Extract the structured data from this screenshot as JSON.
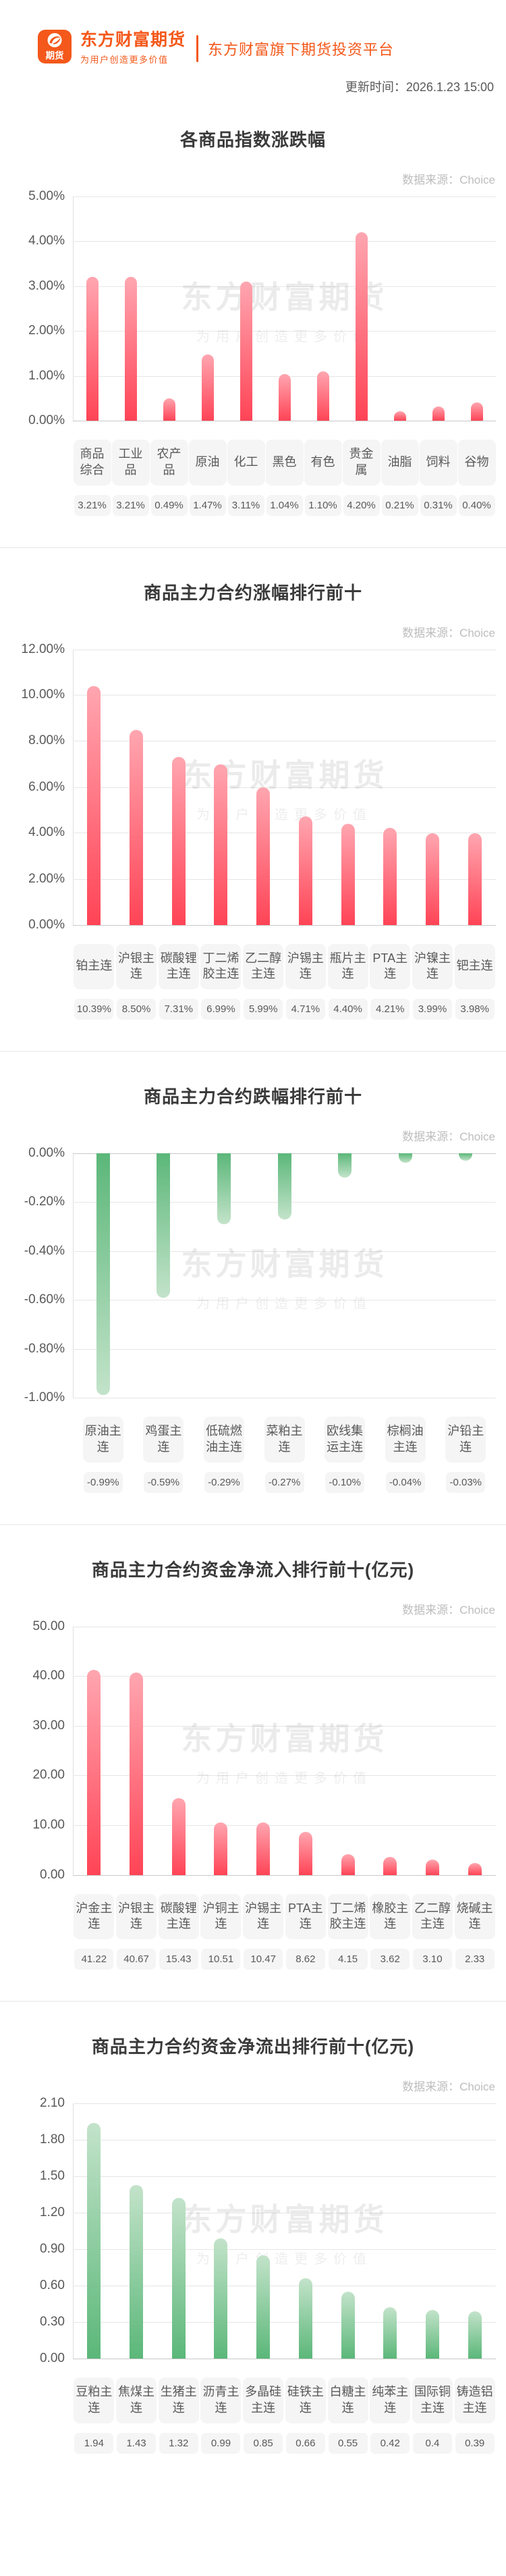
{
  "header": {
    "logo_badge_text": "期货",
    "brand_name": "东方财富期货",
    "brand_tagline": "为用户创造更多价值",
    "platform_label": "东方财富旗下期货投资平台",
    "update_time": "更新时间：2026.1.23 15:00",
    "brand_color": "#F4581A"
  },
  "watermark": {
    "line1": "东方财富期货",
    "line2": "为用户创造更多价值"
  },
  "colors": {
    "rise_gradient_top": "#FFA6B0",
    "rise_gradient_bottom": "#FF4456",
    "fall_gradient_dark": "#5BB779",
    "fall_gradient_light": "#C3E3CA",
    "gridline": "#E6E6E6",
    "tick_text": "#595959",
    "badge_background": "#F5F5F5",
    "source_text": "#BDBDBD"
  },
  "chart_data": [
    {
      "type": "bar",
      "title": "各商品指数涨跌幅",
      "source": "数据来源：Choice",
      "direction": "up",
      "palette": "red",
      "axis_max": 5,
      "ylim": [
        0,
        5
      ],
      "grid": true,
      "legend": "none",
      "ticks": [
        "5.00%",
        "4.00%",
        "3.00%",
        "2.00%",
        "1.00%",
        "0.00%"
      ],
      "categories": [
        "商品综合",
        "工业品",
        "农产品",
        "原油",
        "化工",
        "黑色",
        "有色",
        "贵金属",
        "油脂",
        "饲料",
        "谷物"
      ],
      "values": [
        3.21,
        3.21,
        0.49,
        1.47,
        3.11,
        1.04,
        1.1,
        4.2,
        0.21,
        0.31,
        0.4
      ],
      "value_labels": [
        "3.21%",
        "3.21%",
        "0.49%",
        "1.47%",
        "3.11%",
        "1.04%",
        "1.10%",
        "4.20%",
        "0.21%",
        "0.31%",
        "0.40%"
      ]
    },
    {
      "type": "bar",
      "title": "商品主力合约涨幅排行前十",
      "source": "数据来源：Choice",
      "direction": "up",
      "palette": "red",
      "axis_max": 12,
      "ylim": [
        0,
        12
      ],
      "grid": true,
      "legend": "none",
      "ticks": [
        "12.00%",
        "10.00%",
        "8.00%",
        "6.00%",
        "4.00%",
        "2.00%",
        "0.00%"
      ],
      "categories": [
        "铂主连",
        "沪银主连",
        "碳酸锂主连",
        "丁二烯胶主连",
        "乙二醇主连",
        "沪锡主连",
        "瓶片主连",
        "PTA主连",
        "沪镍主连",
        "钯主连"
      ],
      "values": [
        10.39,
        8.5,
        7.31,
        6.99,
        5.99,
        4.71,
        4.4,
        4.21,
        3.99,
        3.98
      ],
      "value_labels": [
        "10.39%",
        "8.50%",
        "7.31%",
        "6.99%",
        "5.99%",
        "4.71%",
        "4.40%",
        "4.21%",
        "3.99%",
        "3.98%"
      ]
    },
    {
      "type": "bar",
      "title": "商品主力合约跌幅排行前十",
      "source": "数据来源：Choice",
      "direction": "down",
      "palette": "green",
      "axis_max": 1,
      "ylim": [
        -1,
        0
      ],
      "grid": true,
      "legend": "none",
      "ticks": [
        "0.00%",
        "-0.20%",
        "-0.40%",
        "-0.60%",
        "-0.80%",
        "-1.00%"
      ],
      "categories": [
        "原油主连",
        "鸡蛋主连",
        "低硫燃油主连",
        "菜粕主连",
        "欧线集运主连",
        "棕榈油主连",
        "沪铅主连"
      ],
      "values": [
        -0.99,
        -0.59,
        -0.29,
        -0.27,
        -0.1,
        -0.04,
        -0.03
      ],
      "value_labels": [
        "-0.99%",
        "-0.59%",
        "-0.29%",
        "-0.27%",
        "-0.10%",
        "-0.04%",
        "-0.03%"
      ]
    },
    {
      "type": "bar",
      "title": "商品主力合约资金净流入排行前十(亿元)",
      "source": "数据来源：Choice",
      "direction": "up",
      "palette": "red",
      "axis_max": 50,
      "ylim": [
        0,
        50
      ],
      "grid": true,
      "legend": "none",
      "ticks": [
        "50.00",
        "40.00",
        "30.00",
        "20.00",
        "10.00",
        "0.00"
      ],
      "categories": [
        "沪金主连",
        "沪银主连",
        "碳酸锂主连",
        "沪铜主连",
        "沪锡主连",
        "PTA主连",
        "丁二烯胶主连",
        "橡胶主连",
        "乙二醇主连",
        "烧碱主连"
      ],
      "values": [
        41.22,
        40.67,
        15.43,
        10.51,
        10.47,
        8.62,
        4.15,
        3.62,
        3.1,
        2.33
      ],
      "value_labels": [
        "41.22",
        "40.67",
        "15.43",
        "10.51",
        "10.47",
        "8.62",
        "4.15",
        "3.62",
        "3.10",
        "2.33"
      ]
    },
    {
      "type": "bar",
      "title": "商品主力合约资金净流出排行前十(亿元)",
      "source": "数据来源：Choice",
      "direction": "up",
      "palette": "green",
      "axis_max": 2.1,
      "ylim": [
        0,
        2.1
      ],
      "grid": true,
      "legend": "none",
      "ticks": [
        "2.10",
        "1.80",
        "1.50",
        "1.20",
        "0.90",
        "0.60",
        "0.30",
        "0.00"
      ],
      "categories": [
        "豆粕主连",
        "焦煤主连",
        "生猪主连",
        "沥青主连",
        "多晶硅主连",
        "硅铁主连",
        "白糖主连",
        "纯苯主连",
        "国际铜主连",
        "铸造铝主连"
      ],
      "values": [
        1.94,
        1.43,
        1.32,
        0.99,
        0.85,
        0.66,
        0.55,
        0.42,
        0.4,
        0.39
      ],
      "value_labels": [
        "1.94",
        "1.43",
        "1.32",
        "0.99",
        "0.85",
        "0.66",
        "0.55",
        "0.42",
        "0.4",
        "0.39"
      ]
    }
  ]
}
